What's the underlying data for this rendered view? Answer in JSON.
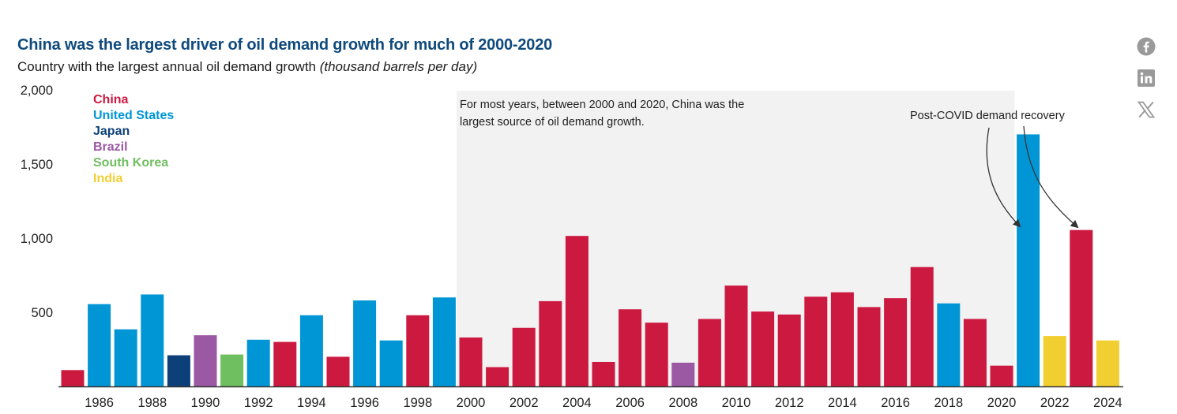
{
  "header": {
    "title": "China was the largest driver of oil demand growth for much of 2000-2020",
    "subtitle_main": "Country with the largest annual oil demand growth ",
    "subtitle_unit": "(thousand barrels per day)"
  },
  "social": [
    {
      "name": "facebook-icon",
      "label": "Facebook"
    },
    {
      "name": "linkedin-icon",
      "label": "LinkedIn"
    },
    {
      "name": "x-icon",
      "label": "X"
    }
  ],
  "annotations": {
    "shaded_note": "For most years, between 2000 and 2020, China was the largest source of oil demand growth.",
    "shaded_note_line1": "For most years, between 2000 and 2020, China was the",
    "shaded_note_line2": "largest source of oil demand growth.",
    "covid_note": "Post-COVID demand recovery"
  },
  "colors": {
    "China": "#cc1940",
    "United States": "#0096d6",
    "Japan": "#0d4078",
    "Brazil": "#9b59a4",
    "South Korea": "#6fbe5f",
    "India": "#f2cf30",
    "shade": "#f2f2f2",
    "axis": "#333333",
    "title": "#0f4a7d"
  },
  "chart_data": {
    "type": "bar",
    "title": "China was the largest driver of oil demand growth for much of 2000-2020",
    "subtitle": "Country with the largest annual oil demand growth (thousand barrels per day)",
    "xlabel": "",
    "ylabel": "thousand barrels per day",
    "ylim": [
      0,
      2000
    ],
    "yticks": [
      500,
      1000,
      1500,
      2000
    ],
    "ytick_labels": [
      "500",
      "1,000",
      "1,500",
      "2,000"
    ],
    "xtick_labels": [
      "1986",
      "1988",
      "1990",
      "1992",
      "1994",
      "1996",
      "1998",
      "2000",
      "2002",
      "2004",
      "2006",
      "2008",
      "2010",
      "2012",
      "2014",
      "2016",
      "2018",
      "2020",
      "2022",
      "2024"
    ],
    "grid": false,
    "legend": {
      "placement": "top-left",
      "entries": [
        "China",
        "United States",
        "Japan",
        "Brazil",
        "South Korea",
        "India"
      ]
    },
    "shaded_region": {
      "from": 2000,
      "to": 2020
    },
    "categories": [
      1985,
      1986,
      1987,
      1988,
      1989,
      1990,
      1991,
      1992,
      1993,
      1994,
      1995,
      1996,
      1997,
      1998,
      1999,
      2000,
      2001,
      2002,
      2003,
      2004,
      2005,
      2006,
      2007,
      2008,
      2009,
      2010,
      2011,
      2012,
      2013,
      2014,
      2015,
      2016,
      2017,
      2018,
      2019,
      2020,
      2021,
      2022,
      2023,
      2024
    ],
    "values": [
      110,
      555,
      385,
      620,
      210,
      345,
      215,
      315,
      300,
      480,
      200,
      580,
      310,
      480,
      600,
      330,
      130,
      395,
      575,
      1015,
      165,
      520,
      430,
      160,
      455,
      680,
      505,
      485,
      605,
      635,
      535,
      595,
      805,
      560,
      455,
      140,
      1700,
      340,
      1055,
      310
    ],
    "countries": [
      "China",
      "United States",
      "United States",
      "United States",
      "Japan",
      "Brazil",
      "South Korea",
      "United States",
      "China",
      "United States",
      "China",
      "United States",
      "United States",
      "China",
      "United States",
      "China",
      "China",
      "China",
      "China",
      "China",
      "China",
      "China",
      "China",
      "Brazil",
      "China",
      "China",
      "China",
      "China",
      "China",
      "China",
      "China",
      "China",
      "China",
      "United States",
      "China",
      "China",
      "United States",
      "India",
      "China",
      "India"
    ]
  }
}
